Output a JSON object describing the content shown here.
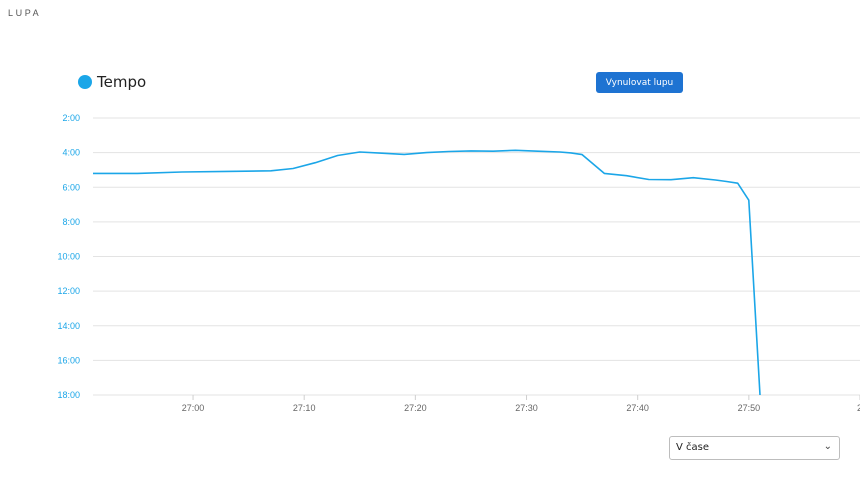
{
  "section": {
    "title": "LUPA"
  },
  "legend": {
    "label": "Tempo",
    "color": "#1ba6e8"
  },
  "toolbar": {
    "reset_label": "Vynulovat lupu",
    "reset_color": "#1e73d2"
  },
  "view_select": {
    "selected": "V čase"
  },
  "chart_data": {
    "type": "line",
    "title": "",
    "xlabel": "",
    "ylabel": "",
    "x_tick_labels": [
      "27:00",
      "27:10",
      "27:20",
      "27:30",
      "27:40",
      "27:50",
      "2"
    ],
    "y_tick_labels": [
      "2:00",
      "4:00",
      "6:00",
      "8:00",
      "10:00",
      "12:00",
      "14:00",
      "16:00",
      "18:00"
    ],
    "xlim": [
      "26:51",
      "28:00"
    ],
    "ylim": [
      "2:00",
      "18:00"
    ],
    "y_inverted": true,
    "grid": true,
    "legend_position": "top-left",
    "series": [
      {
        "name": "Tempo",
        "color": "#1ba6e8",
        "x": [
          "26:51",
          "26:55",
          "26:59",
          "27:03",
          "27:07",
          "27:09",
          "27:11",
          "27:13",
          "27:15",
          "27:17",
          "27:19",
          "27:21",
          "27:23",
          "27:25",
          "27:27",
          "27:29",
          "27:31",
          "27:33",
          "27:34",
          "27:35",
          "27:37",
          "27:39",
          "27:41",
          "27:43",
          "27:45",
          "27:47",
          "27:48",
          "27:49",
          "27:50",
          "27:51"
        ],
        "y": [
          "5:12",
          "5:12",
          "5:07",
          "5:05",
          "5:03",
          "4:55",
          "4:35",
          "4:10",
          "3:58",
          "4:02",
          "4:06",
          "4:00",
          "3:56",
          "3:54",
          "3:55",
          "3:52",
          "3:55",
          "3:58",
          "4:01",
          "4:07",
          "5:12",
          "5:20",
          "5:33",
          "5:34",
          "5:27",
          "5:35",
          "5:40",
          "5:46",
          "6:45",
          "18:00"
        ]
      }
    ]
  }
}
